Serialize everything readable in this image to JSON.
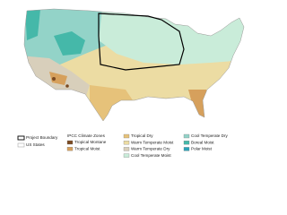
{
  "legend": {
    "boundary": {
      "project_boundary": "Project Boundary",
      "us_states": "US States"
    },
    "zones_title": "IPCC Climate Zones",
    "zones": [
      {
        "label": "Tropical Montane",
        "color": "#7b4a22"
      },
      {
        "label": "Tropical Moist",
        "color": "#d6a05c"
      },
      {
        "label": "Tropical Dry",
        "color": "#e6c27a"
      },
      {
        "label": "Warm Temperate Moist",
        "color": "#ecdca3"
      },
      {
        "label": "Warm Temperate Dry",
        "color": "#d8cfbb"
      },
      {
        "label": "Cool Temperate Moist",
        "color": "#c9ecd9"
      },
      {
        "label": "Cool Temperate Dry",
        "color": "#93d3c8"
      },
      {
        "label": "Boreal Moist",
        "color": "#45b8a9"
      },
      {
        "label": "Polar Moist",
        "color": "#2ba3b8"
      }
    ]
  }
}
